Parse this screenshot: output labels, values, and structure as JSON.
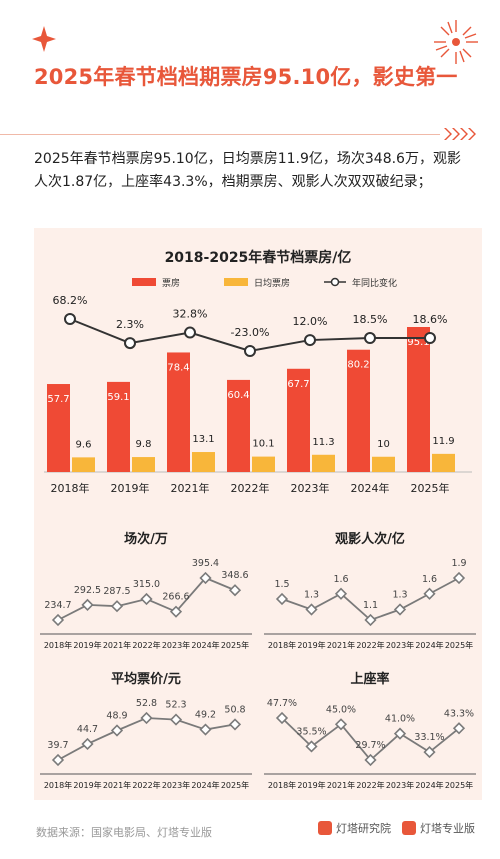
{
  "headline": "2025年春节档档期票房95.10亿，影史第一",
  "summary": "2025年春节档票房95.10亿，日均票房11.9亿，场次348.6万，观影人次1.87亿，上座率43.3%，档期票房、观影人次双双破纪录；",
  "footer": {
    "source": "数据来源：国家电影局、灯塔专业版",
    "brand1": "灯塔研究院",
    "brand2": "灯塔专业版"
  },
  "colors": {
    "accent": "#e8573a",
    "bar": "#ef4a35",
    "bar2": "#f8b63a",
    "line": "#333333",
    "panel": "#fdf0ea",
    "small_line": "#7a7a7a"
  },
  "chart_data": [
    {
      "type": "bar",
      "title": "2018-2025年春节档票房/亿",
      "categories": [
        "2018年",
        "2019年",
        "2021年",
        "2022年",
        "2023年",
        "2024年",
        "2025年"
      ],
      "series": [
        {
          "name": "票房",
          "values": [
            57.7,
            59.1,
            78.4,
            60.4,
            67.7,
            80.2,
            95.1
          ]
        },
        {
          "name": "日均票房",
          "values": [
            9.6,
            9.8,
            13.1,
            10.1,
            11.3,
            10.0,
            11.9
          ]
        },
        {
          "name": "年同比变化",
          "type": "line",
          "values": [
            68.2,
            2.3,
            32.8,
            -23.0,
            12.0,
            18.5,
            18.6
          ],
          "labels": [
            "68.2%",
            "2.3%",
            "32.8%",
            "-23.0%",
            "12.0%",
            "18.5%",
            "18.6%"
          ]
        }
      ],
      "legend": "top",
      "ylim": [
        0,
        100
      ]
    },
    {
      "type": "line",
      "title": "场次/万",
      "categories": [
        "2018年",
        "2019年",
        "2021年",
        "2022年",
        "2023年",
        "2024年",
        "2025年"
      ],
      "values": [
        234.7,
        292.5,
        287.5,
        315.0,
        266.6,
        395.4,
        348.6
      ],
      "labels": [
        "234.7",
        "292.5",
        "287.5",
        "315.0",
        "266.6",
        "395.4",
        "348.6"
      ]
    },
    {
      "type": "line",
      "title": "观影人次/亿",
      "categories": [
        "2018年",
        "2019年",
        "2021年",
        "2022年",
        "2023年",
        "2024年",
        "2025年"
      ],
      "values": [
        1.5,
        1.3,
        1.6,
        1.1,
        1.3,
        1.6,
        1.9
      ],
      "labels": [
        "1.5",
        "1.3",
        "1.6",
        "1.1",
        "1.3",
        "1.6",
        "1.9"
      ]
    },
    {
      "type": "line",
      "title": "平均票价/元",
      "categories": [
        "2018年",
        "2019年",
        "2021年",
        "2022年",
        "2023年",
        "2024年",
        "2025年"
      ],
      "values": [
        39.7,
        44.7,
        48.9,
        52.8,
        52.3,
        49.2,
        50.8
      ],
      "labels": [
        "39.7",
        "44.7",
        "48.9",
        "52.8",
        "52.3",
        "49.2",
        "50.8"
      ]
    },
    {
      "type": "line",
      "title": "上座率",
      "categories": [
        "2018年",
        "2019年",
        "2021年",
        "2022年",
        "2023年",
        "2024年",
        "2025年"
      ],
      "values": [
        47.7,
        35.5,
        45.0,
        29.7,
        41.0,
        33.1,
        43.3
      ],
      "labels": [
        "47.7%",
        "35.5%",
        "45.0%",
        "29.7%",
        "41.0%",
        "33.1%",
        "43.3%"
      ]
    }
  ]
}
